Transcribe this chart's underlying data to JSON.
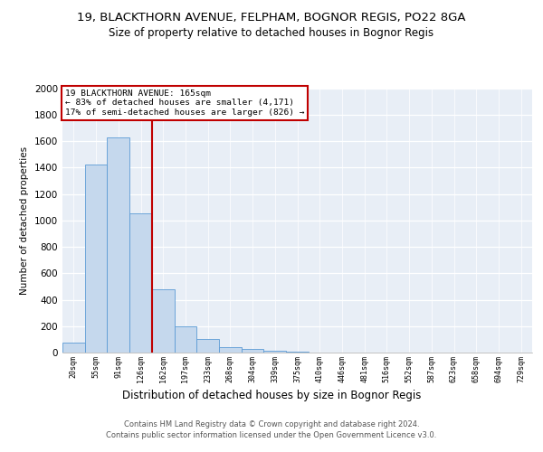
{
  "title1": "19, BLACKTHORN AVENUE, FELPHAM, BOGNOR REGIS, PO22 8GA",
  "title2": "Size of property relative to detached houses in Bognor Regis",
  "xlabel": "Distribution of detached houses by size in Bognor Regis",
  "ylabel": "Number of detached properties",
  "categories": [
    "20sqm",
    "55sqm",
    "91sqm",
    "126sqm",
    "162sqm",
    "197sqm",
    "233sqm",
    "268sqm",
    "304sqm",
    "339sqm",
    "375sqm",
    "410sqm",
    "446sqm",
    "481sqm",
    "516sqm",
    "552sqm",
    "587sqm",
    "623sqm",
    "658sqm",
    "694sqm",
    "729sqm"
  ],
  "values": [
    75,
    1420,
    1625,
    1050,
    480,
    200,
    105,
    40,
    25,
    15,
    10,
    0,
    0,
    0,
    0,
    0,
    0,
    0,
    0,
    0,
    0
  ],
  "bar_color": "#c5d8ed",
  "bar_edge_color": "#5b9bd5",
  "vline_position": 3.5,
  "vline_color": "#c00000",
  "annotation_line1": "19 BLACKTHORN AVENUE: 165sqm",
  "annotation_line2": "← 83% of detached houses are smaller (4,171)",
  "annotation_line3": "17% of semi-detached houses are larger (826) →",
  "annotation_box_edgecolor": "#c00000",
  "footer1": "Contains HM Land Registry data © Crown copyright and database right 2024.",
  "footer2": "Contains public sector information licensed under the Open Government Licence v3.0.",
  "ylim_max": 2000,
  "yticks": [
    0,
    200,
    400,
    600,
    800,
    1000,
    1200,
    1400,
    1600,
    1800,
    2000
  ],
  "plot_bg_color": "#e8eef6",
  "title1_fontsize": 9.5,
  "title2_fontsize": 8.5,
  "xlabel_fontsize": 8.5,
  "ylabel_fontsize": 7.5
}
